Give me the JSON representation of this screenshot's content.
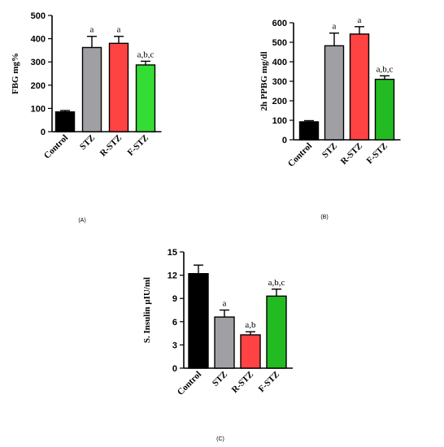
{
  "chart_data": [
    {
      "panel": "(A)",
      "type": "bar",
      "ylabel": "FBG mg%",
      "categories": [
        "Control",
        "STZ",
        "R-STZ",
        "F-STZ"
      ],
      "values": [
        85,
        362,
        380,
        287
      ],
      "errors": [
        6,
        48,
        30,
        16
      ],
      "annotations": [
        "",
        "a",
        "a",
        "a,b,c"
      ],
      "colors": [
        "#000000",
        "#a0a0a4",
        "#ff4242",
        "#33dd33"
      ],
      "ylim": [
        0,
        500
      ],
      "yticks": [
        0,
        100,
        200,
        300,
        400,
        500
      ]
    },
    {
      "panel": "(B)",
      "type": "bar",
      "ylabel": "2h PPBG mg/dl",
      "categories": [
        "Control",
        "STZ",
        "R-STZ",
        "F-STZ"
      ],
      "values": [
        92,
        482,
        542,
        310
      ],
      "errors": [
        6,
        65,
        38,
        18
      ],
      "annotations": [
        "",
        "a",
        "a",
        "a,b,c"
      ],
      "colors": [
        "#000000",
        "#a0a0a4",
        "#ff4242",
        "#22bb22"
      ],
      "ylim": [
        0,
        600
      ],
      "yticks": [
        0,
        100,
        200,
        300,
        400,
        500,
        600
      ]
    },
    {
      "panel": "(C)",
      "type": "bar",
      "ylabel": "S. Insulin µIU/ml",
      "categories": [
        "Control",
        "STZ",
        "R-STZ",
        "F-STZ"
      ],
      "values": [
        12.2,
        6.6,
        4.3,
        9.3
      ],
      "errors": [
        1.1,
        0.9,
        0.4,
        0.9
      ],
      "annotations": [
        "",
        "a",
        "a,b",
        "a,b,c"
      ],
      "colors": [
        "#000000",
        "#a0a0a4",
        "#ff4242",
        "#22bb22"
      ],
      "ylim": [
        0,
        15
      ],
      "yticks": [
        0,
        3,
        6,
        9,
        12,
        15
      ]
    }
  ]
}
